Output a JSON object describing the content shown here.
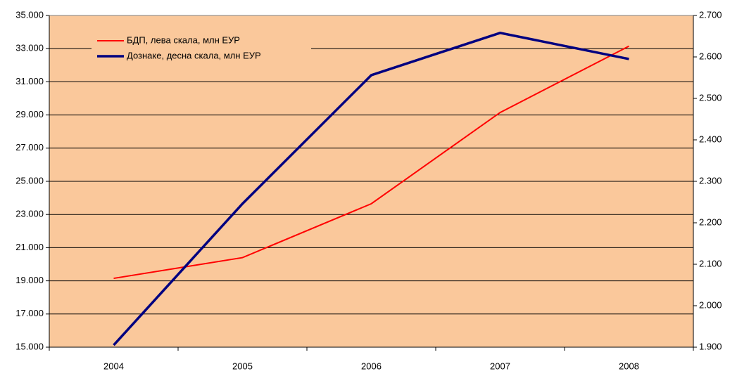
{
  "chart_data": {
    "type": "line",
    "categories": [
      "2004",
      "2005",
      "2006",
      "2007",
      "2008"
    ],
    "series": [
      {
        "name": "БДП, лева скала, млн ЕУР",
        "color": "#ff0000",
        "values": [
          19150,
          20400,
          23650,
          29150,
          33150
        ]
      },
      {
        "name": "Дознаке, десна скала, млн ЕУР",
        "color": "#000080",
        "axis": "y2",
        "values": [
          1905,
          2246,
          2556,
          2658,
          2595
        ]
      }
    ],
    "ylim": [
      15000,
      35000
    ],
    "yticks": [
      {
        "value": 15000,
        "label": "15.000"
      },
      {
        "value": 17000,
        "label": "17.000"
      },
      {
        "value": 19000,
        "label": "19.000"
      },
      {
        "value": 21000,
        "label": "21.000"
      },
      {
        "value": 23000,
        "label": "23.000"
      },
      {
        "value": 25000,
        "label": "25.000"
      },
      {
        "value": 27000,
        "label": "27.000"
      },
      {
        "value": 29000,
        "label": "29.000"
      },
      {
        "value": 31000,
        "label": "31.000"
      },
      {
        "value": 33000,
        "label": "33.000"
      },
      {
        "value": 35000,
        "label": "35.000"
      }
    ],
    "y2lim": [
      1900,
      2700
    ],
    "y2ticks": [
      {
        "value": 1900,
        "label": "1.900"
      },
      {
        "value": 2000,
        "label": "2.000"
      },
      {
        "value": 2100,
        "label": "2.100"
      },
      {
        "value": 2200,
        "label": "2.200"
      },
      {
        "value": 2300,
        "label": "2.300"
      },
      {
        "value": 2400,
        "label": "2.400"
      },
      {
        "value": 2500,
        "label": "2.500"
      },
      {
        "value": 2600,
        "label": "2.600"
      },
      {
        "value": 2700,
        "label": "2.700"
      }
    ],
    "grid": true,
    "legend": "upper left",
    "background": "#fac89b"
  }
}
